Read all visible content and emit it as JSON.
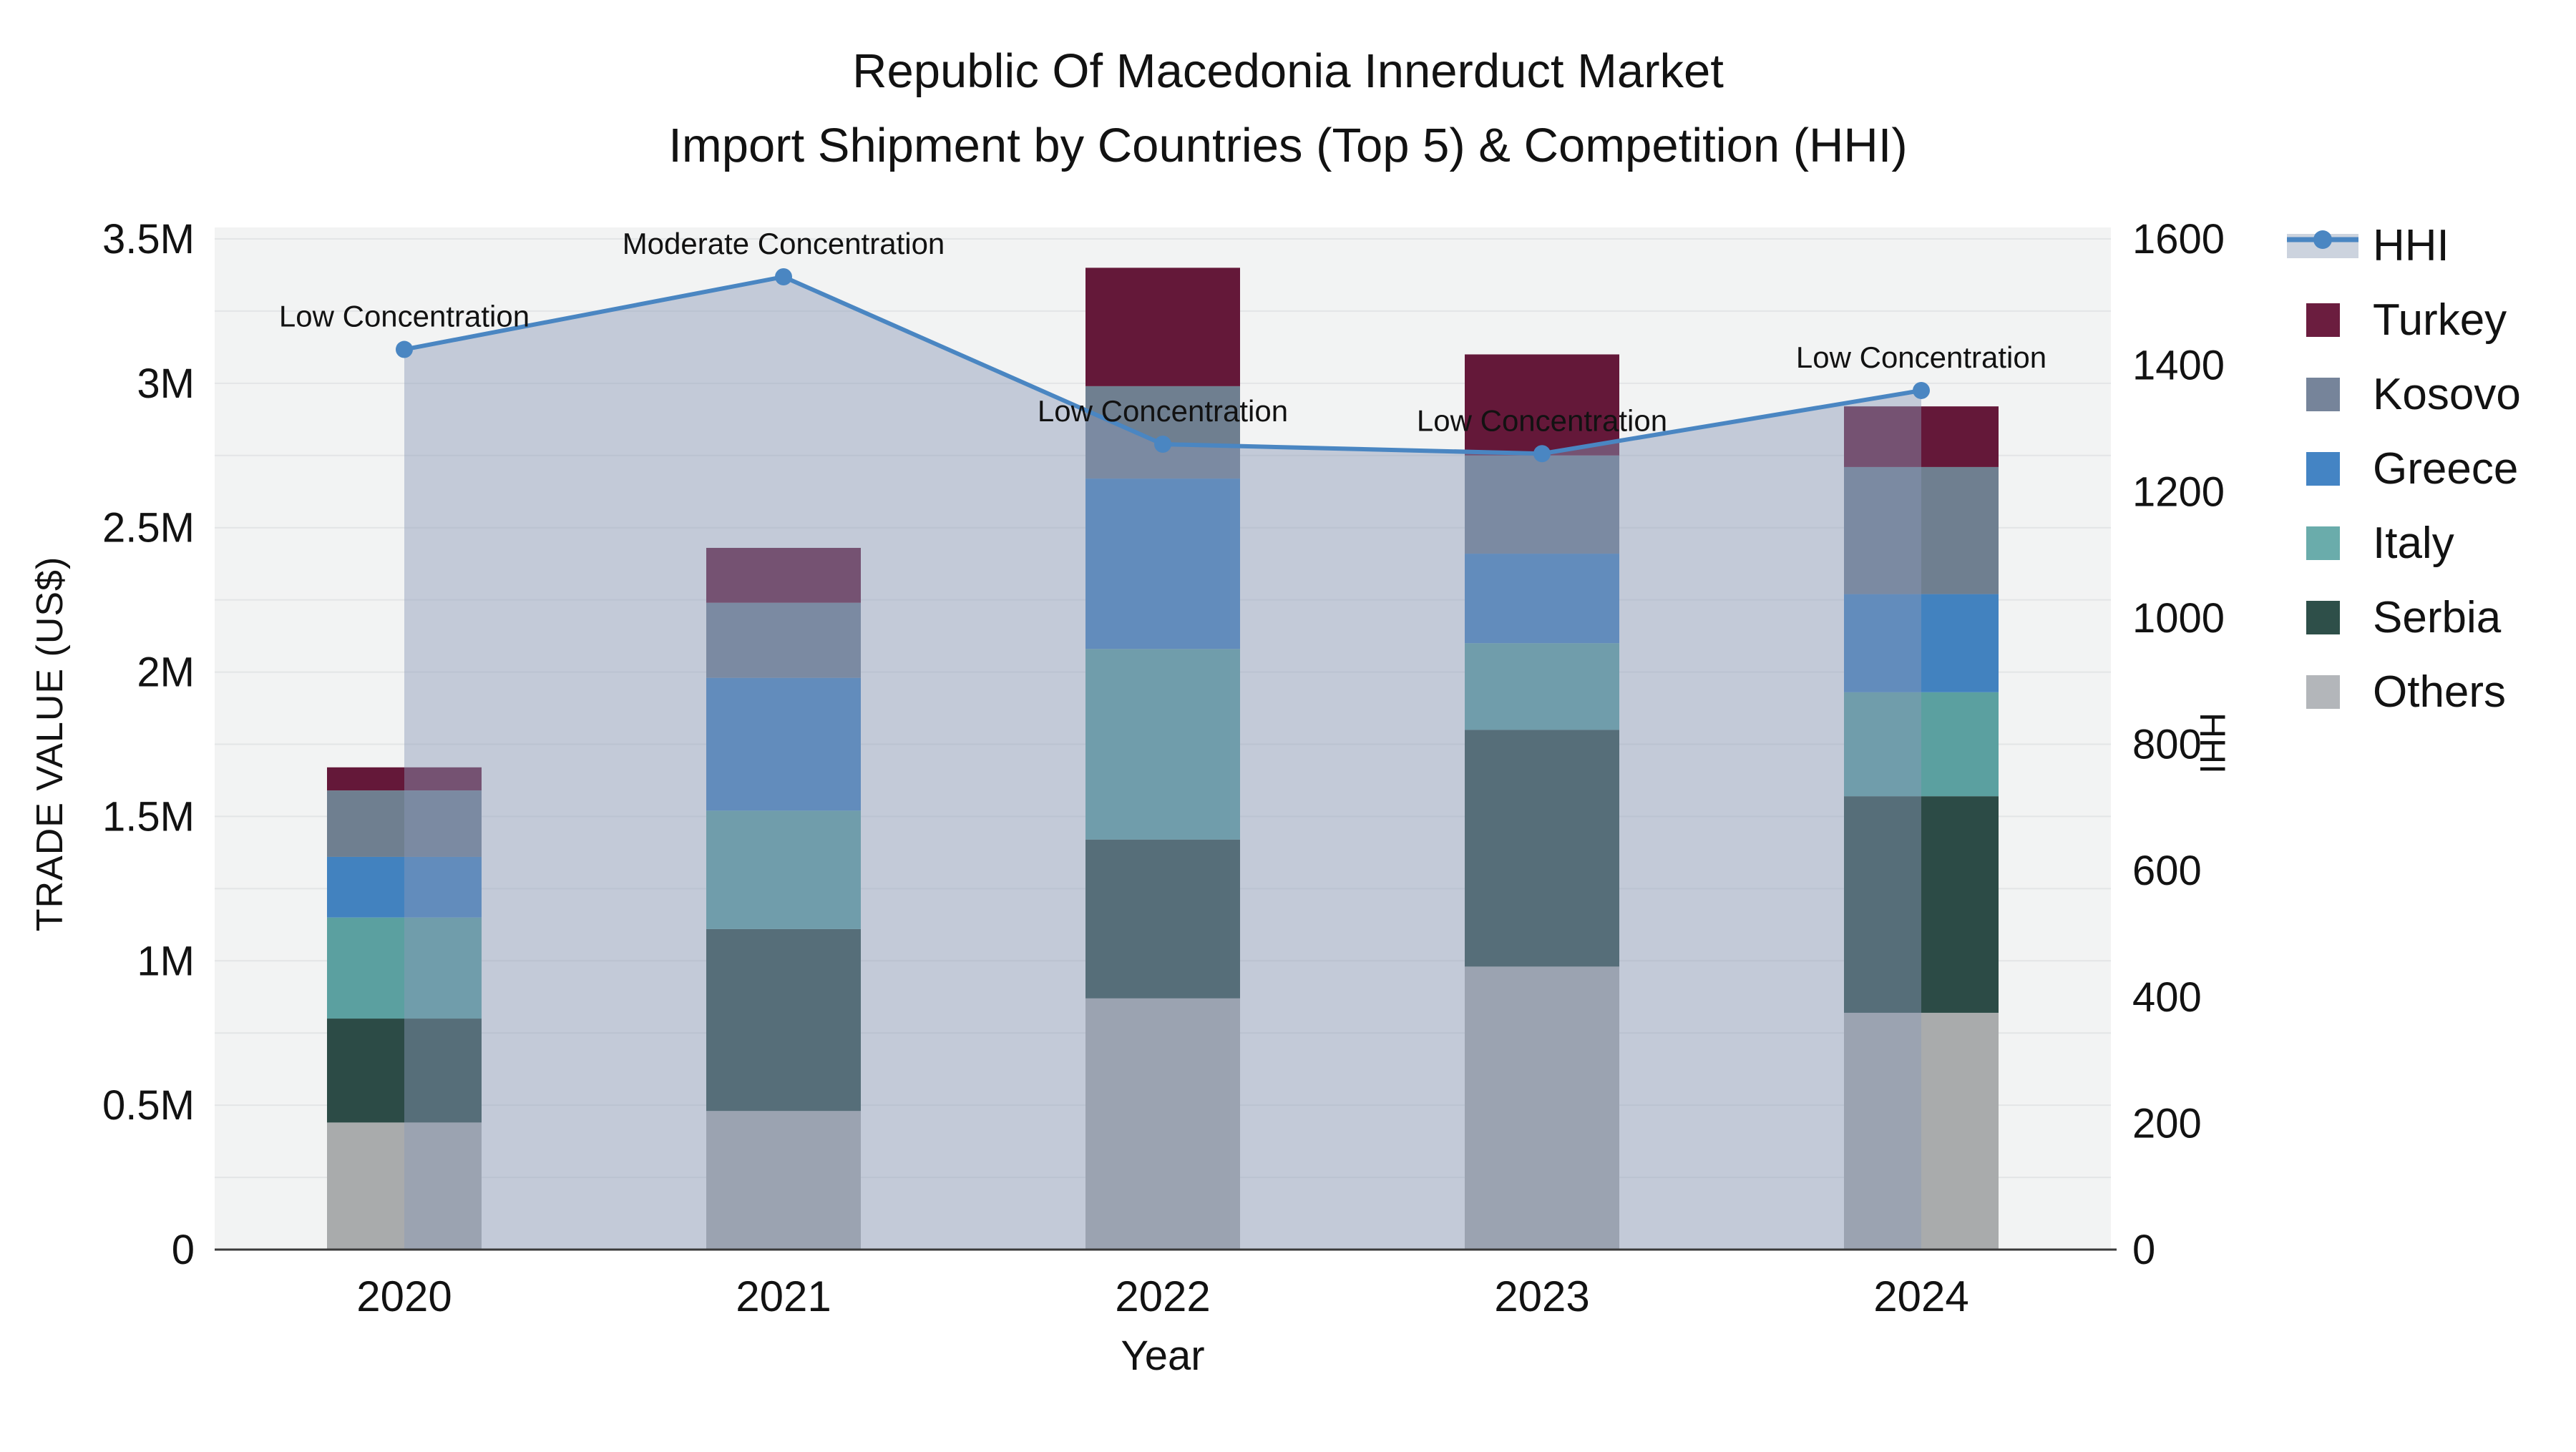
{
  "title": {
    "line1": "Republic Of Macedonia Innerduct Market",
    "line2": "Import Shipment by Countries (Top 5) & Competition (HHI)"
  },
  "chart_data": {
    "type": "bar",
    "subtype": "stacked-bar-with-line",
    "categories": [
      "2020",
      "2021",
      "2022",
      "2023",
      "2024"
    ],
    "bar_value_unit": "millions US$",
    "series": [
      {
        "name": "Others",
        "color": "#a9abac",
        "values": [
          0.44,
          0.48,
          0.87,
          0.98,
          0.82
        ]
      },
      {
        "name": "Serbia",
        "color": "#2c4b46",
        "values": [
          0.36,
          0.63,
          0.55,
          0.82,
          0.75
        ]
      },
      {
        "name": "Italy",
        "color": "#5ba0a0",
        "values": [
          0.35,
          0.41,
          0.66,
          0.3,
          0.36
        ]
      },
      {
        "name": "Greece",
        "color": "#4282bf",
        "values": [
          0.21,
          0.46,
          0.59,
          0.31,
          0.34
        ]
      },
      {
        "name": "Kosovo",
        "color": "#6f7f90",
        "values": [
          0.23,
          0.26,
          0.32,
          0.34,
          0.44
        ]
      },
      {
        "name": "Turkey",
        "color": "#641839",
        "values": [
          0.08,
          0.19,
          0.41,
          0.35,
          0.21
        ]
      }
    ],
    "line": {
      "name": "HHI",
      "values": [
        1425,
        1540,
        1275,
        1260,
        1360
      ],
      "color": "#4a86c2",
      "area_fill": "rgba(138,154,184,0.45)",
      "legend_band_color": "#ccd3de"
    },
    "annotations": [
      "Low Concentration",
      "Moderate Concentration",
      "Low Concentration",
      "Low Concentration",
      "Low Concentration"
    ],
    "left_axis": {
      "label": "TRADE VALUE (US$)",
      "tick_labels": [
        "0",
        "0.5M",
        "1M",
        "1.5M",
        "2M",
        "2.5M",
        "3M",
        "3.5M"
      ],
      "tick_values_m": [
        0,
        0.5,
        1,
        1.5,
        2,
        2.5,
        3,
        3.5
      ],
      "max_m": 3.5,
      "minor_grid_step_m": 0.25
    },
    "right_axis": {
      "label": "HHI",
      "tick_values": [
        0,
        200,
        400,
        600,
        800,
        1000,
        1200,
        1400,
        1600
      ],
      "max": 1600
    },
    "x_axis": {
      "label": "Year"
    },
    "legend": [
      {
        "name": "HHI",
        "type": "line"
      },
      {
        "name": "Turkey",
        "type": "swatch",
        "color": "#6b1d3f"
      },
      {
        "name": "Kosovo",
        "type": "swatch",
        "color": "#76849a"
      },
      {
        "name": "Greece",
        "type": "swatch",
        "color": "#4484c4"
      },
      {
        "name": "Italy",
        "type": "swatch",
        "color": "#6aacab"
      },
      {
        "name": "Serbia",
        "type": "swatch",
        "color": "#2e4f49"
      },
      {
        "name": "Others",
        "type": "swatch",
        "color": "#b3b6ba"
      }
    ],
    "plot_bg": "#f2f3f3",
    "grid_color": "#e3e5e6",
    "axis_line_color": "#3a3a3a",
    "text_color": "#121212"
  }
}
